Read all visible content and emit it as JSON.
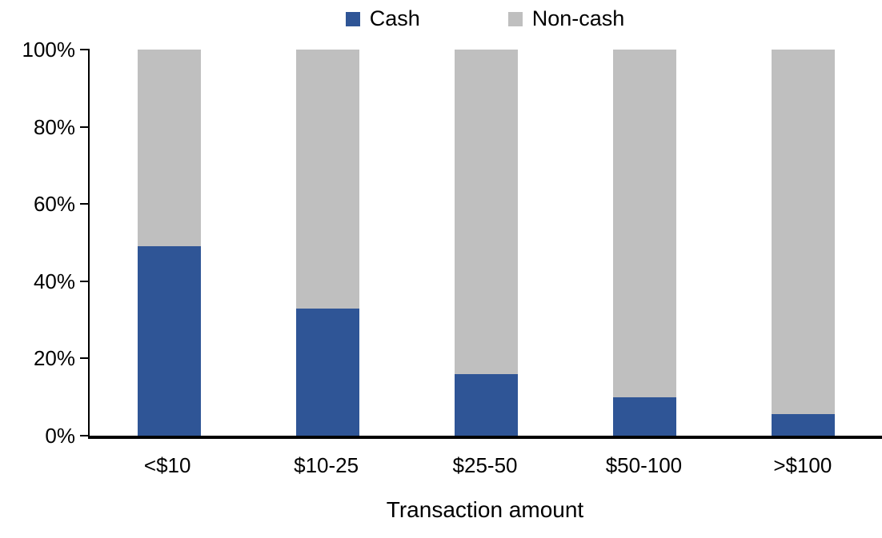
{
  "chart_data": {
    "type": "bar",
    "subtype": "stacked-100-percent",
    "title": "",
    "categories": [
      "<$10",
      "$10-25",
      "$25-50",
      "$50-100",
      ">$100"
    ],
    "series": [
      {
        "name": "Cash",
        "color": "#2F5596",
        "values": [
          49,
          33,
          16,
          10,
          5.5
        ]
      },
      {
        "name": "Non-cash",
        "color": "#BFBFBF",
        "values": [
          51,
          67,
          84,
          90,
          94.5
        ]
      }
    ],
    "xlabel": "Transaction amount",
    "ylabel": "",
    "ylim": [
      0,
      100
    ],
    "yticks": [
      "0%",
      "20%",
      "40%",
      "60%",
      "80%",
      "100%"
    ],
    "ytick_values": [
      0,
      20,
      40,
      60,
      80,
      100
    ],
    "legend_position": "top",
    "grid": false,
    "axis_color": "#000000"
  }
}
